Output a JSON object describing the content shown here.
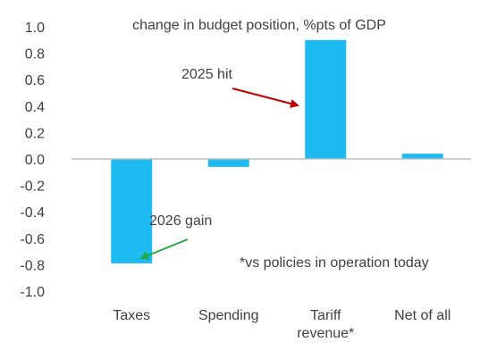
{
  "chart_data": {
    "type": "bar",
    "title": "change in budget position, %pts of GDP",
    "categories": [
      "Taxes",
      "Spending",
      "Tariff revenue*",
      "Net of all"
    ],
    "category_lines": [
      [
        "Taxes"
      ],
      [
        "Spending"
      ],
      [
        "Tariff",
        "revenue*"
      ],
      [
        "Net of all"
      ]
    ],
    "values": [
      -0.79,
      -0.06,
      0.9,
      0.04
    ],
    "ylim": [
      -1.0,
      1.0
    ],
    "yticks": [
      "1.0",
      "0.8",
      "0.6",
      "0.4",
      "0.2",
      "0.0",
      "-0.2",
      "-0.4",
      "-0.6",
      "-0.8",
      "-1.0"
    ],
    "grid": false,
    "bar_color": "#1EBBF3",
    "annotations": {
      "hit_label": "2025 hit",
      "gain_label": "2026 gain",
      "footnote": "*vs policies in operation today"
    },
    "arrow_colors": {
      "hit": "#C00000",
      "gain": "#21A847"
    }
  }
}
